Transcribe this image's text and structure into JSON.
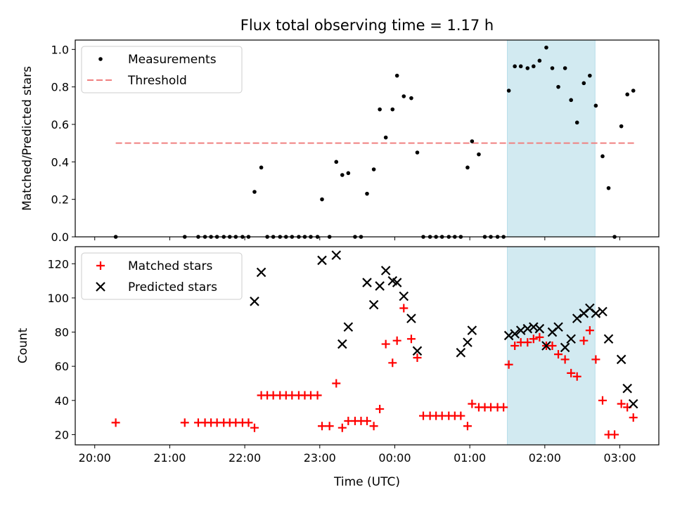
{
  "chart_data": [
    {
      "type": "scatter",
      "title": "Flux total observing time = 1.17 h",
      "ylabel": "Matched/Predicted stars",
      "xlabel": "",
      "ylim": [
        0,
        1.05
      ],
      "yticks": [
        "0.0",
        "0.2",
        "0.4",
        "0.6",
        "0.8",
        "1.0"
      ],
      "highlight_span_hours": [
        25.5,
        26.67
      ],
      "highlight_color": "#add8e6",
      "legend": {
        "placement": "upper-left",
        "entries": [
          "Measurements",
          "Threshold"
        ]
      },
      "series": [
        {
          "name": "Measurements",
          "marker": "dot",
          "color": "#000000",
          "x": [
            20.28,
            21.2,
            21.38,
            21.47,
            21.55,
            21.63,
            21.72,
            21.8,
            21.88,
            21.97,
            22.05,
            22.13,
            22.22,
            22.3,
            22.38,
            22.47,
            22.55,
            22.63,
            22.72,
            22.8,
            22.88,
            22.97,
            23.03,
            23.13,
            23.22,
            23.3,
            23.38,
            23.47,
            23.55,
            23.63,
            23.72,
            23.8,
            23.88,
            23.97,
            24.03,
            24.12,
            24.22,
            24.3,
            24.38,
            24.47,
            24.55,
            24.63,
            24.72,
            24.8,
            24.88,
            24.97,
            25.03,
            25.12,
            25.2,
            25.28,
            25.37,
            25.45,
            25.52,
            25.6,
            25.68,
            25.77,
            25.85,
            25.93,
            26.02,
            26.1,
            26.18,
            26.27,
            26.35,
            26.43,
            26.52,
            26.6,
            26.68,
            26.77,
            26.85,
            26.93,
            27.02,
            27.1,
            27.18
          ],
          "y": [
            0,
            0,
            0,
            0,
            0,
            0,
            0,
            0,
            0,
            0,
            0,
            0.24,
            0.37,
            0,
            0,
            0,
            0,
            0,
            0,
            0,
            0,
            0,
            0.2,
            0,
            0.4,
            0.33,
            0.34,
            0,
            0,
            0.23,
            0.36,
            0.68,
            0.53,
            0.68,
            0.86,
            0.75,
            0.74,
            0.45,
            0,
            0,
            0,
            0,
            0,
            0,
            0,
            0.37,
            0.51,
            0.44,
            0,
            0,
            0,
            0,
            0.78,
            0.91,
            0.91,
            0.9,
            0.91,
            0.94,
            1.01,
            0.9,
            0.8,
            0.9,
            0.73,
            0.61,
            0.82,
            0.86,
            0.7,
            0.43,
            0.26,
            0,
            0.59,
            0.76,
            0.78
          ]
        },
        {
          "name": "Threshold",
          "marker": "dashed-line",
          "color": "#f08080",
          "x": [
            20.28,
            27.2
          ],
          "y": [
            0.5,
            0.5
          ]
        }
      ]
    },
    {
      "type": "scatter",
      "title": "",
      "ylabel": "Count",
      "xlabel": "Time (UTC)",
      "ylim": [
        14,
        130
      ],
      "yticks": [
        "20",
        "40",
        "60",
        "80",
        "100",
        "120"
      ],
      "xticks": [
        "20:00",
        "21:00",
        "22:00",
        "23:00",
        "00:00",
        "01:00",
        "02:00",
        "03:00"
      ],
      "xlim_hours": [
        19.74,
        27.52
      ],
      "highlight_span_hours": [
        25.5,
        26.67
      ],
      "highlight_color": "#add8e6",
      "legend": {
        "placement": "upper-left",
        "entries": [
          "Matched stars",
          "Predicted stars"
        ]
      },
      "series": [
        {
          "name": "Matched stars",
          "marker": "plus",
          "color": "#ff0000",
          "x": [
            20.28,
            21.2,
            21.38,
            21.47,
            21.55,
            21.63,
            21.72,
            21.8,
            21.88,
            21.97,
            22.05,
            22.13,
            22.22,
            22.3,
            22.38,
            22.47,
            22.55,
            22.63,
            22.72,
            22.8,
            22.88,
            22.97,
            23.03,
            23.13,
            23.22,
            23.3,
            23.38,
            23.47,
            23.55,
            23.63,
            23.72,
            23.8,
            23.88,
            23.97,
            24.03,
            24.12,
            24.22,
            24.3,
            24.38,
            24.47,
            24.55,
            24.63,
            24.72,
            24.8,
            24.88,
            24.97,
            25.03,
            25.12,
            25.2,
            25.28,
            25.37,
            25.45,
            25.52,
            25.6,
            25.68,
            25.77,
            25.85,
            25.93,
            26.02,
            26.1,
            26.18,
            26.27,
            26.35,
            26.43,
            26.52,
            26.6,
            26.68,
            26.77,
            26.85,
            26.93,
            27.02,
            27.1,
            27.18
          ],
          "y": [
            27,
            27,
            27,
            27,
            27,
            27,
            27,
            27,
            27,
            27,
            27,
            24,
            43,
            43,
            43,
            43,
            43,
            43,
            43,
            43,
            43,
            43,
            25,
            25,
            50,
            24,
            28,
            28,
            28,
            28,
            25,
            35,
            73,
            62,
            75,
            94,
            76,
            65,
            31,
            31,
            31,
            31,
            31,
            31,
            31,
            25,
            38,
            36,
            36,
            36,
            36,
            36,
            61,
            72,
            74,
            74,
            76,
            77,
            72,
            72,
            67,
            64,
            56,
            54,
            75,
            81,
            64,
            40,
            20,
            20,
            38,
            36,
            30
          ]
        },
        {
          "name": "Predicted stars",
          "marker": "x",
          "color": "#000000",
          "x": [
            22.13,
            22.22,
            23.03,
            23.22,
            23.3,
            23.38,
            23.63,
            23.72,
            23.8,
            23.88,
            23.97,
            24.03,
            24.12,
            24.22,
            24.3,
            24.88,
            24.97,
            25.03,
            25.52,
            25.6,
            25.68,
            25.77,
            25.85,
            25.93,
            26.02,
            26.1,
            26.18,
            26.27,
            26.35,
            26.43,
            26.52,
            26.6,
            26.68,
            26.77,
            26.85,
            27.02,
            27.1,
            27.18
          ],
          "y": [
            98,
            115,
            122,
            125,
            73,
            83,
            109,
            96,
            107,
            116,
            110,
            109,
            101,
            88,
            69,
            68,
            74,
            81,
            78,
            79,
            81,
            82,
            83,
            82,
            72,
            80,
            83,
            71,
            76,
            88,
            91,
            94,
            91,
            92,
            76,
            64,
            47,
            38
          ]
        }
      ]
    }
  ]
}
